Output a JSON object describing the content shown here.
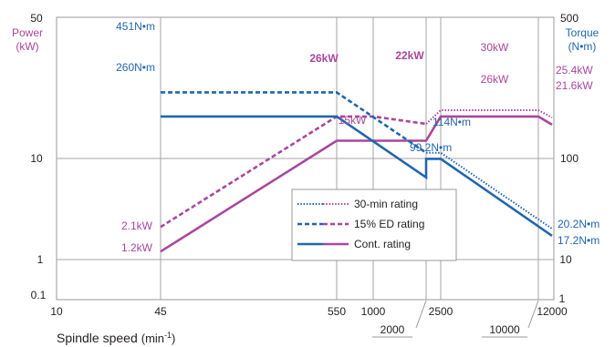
{
  "chart_data": {
    "type": "line",
    "xlabel": "Spindle speed",
    "xlabel_unit": "(min",
    "xlabel_unit_sup": "-1",
    "xlabel_unit_close": ")",
    "y_left": {
      "label_line1": "Power",
      "label_line2": "(kW)",
      "scale": "log",
      "ylim": [
        0.1,
        50
      ],
      "ticks": [
        "0.1",
        "1",
        "10",
        "50"
      ]
    },
    "y_right": {
      "label_line1": "Torque",
      "label_line2": "(N•m)",
      "scale": "log",
      "ylim": [
        1,
        500
      ],
      "ticks": [
        "1",
        "10",
        "100",
        "500"
      ]
    },
    "x_axis": {
      "scale": "piecewise",
      "ticks": [
        "10",
        "45",
        "550",
        "1000",
        "2500",
        "12000"
      ],
      "callouts": [
        "2000",
        "10000"
      ]
    },
    "legend": {
      "placement": "lower-center",
      "entries": [
        "30-min rating",
        "15% ED rating",
        "Cont. rating"
      ]
    },
    "colors": {
      "power": "#a9479b",
      "torque": "#2166ae",
      "grid": "#a6a6a6",
      "text": "#231f20"
    },
    "series": [
      {
        "name": "30-min rating",
        "quantity": "power",
        "unit": "kW",
        "style": "dotted",
        "x": [
          2000,
          2500,
          10000,
          12000
        ],
        "y": [
          22,
          30,
          30,
          25.4
        ]
      },
      {
        "name": "15% ED rating",
        "quantity": "power",
        "unit": "kW",
        "style": "dashed",
        "x": [
          45,
          550,
          1000,
          2000
        ],
        "y": [
          2.1,
          26,
          26,
          22
        ]
      },
      {
        "name": "Cont. rating",
        "quantity": "power",
        "unit": "kW",
        "style": "solid",
        "x": [
          45,
          550,
          2000,
          2500,
          10000,
          12000
        ],
        "y": [
          1.2,
          15,
          15,
          26,
          26,
          21.6
        ]
      },
      {
        "name": "30-min rating",
        "quantity": "torque",
        "unit": "N•m",
        "style": "dotted",
        "x": [
          2000,
          2500,
          12000
        ],
        "y": [
          114,
          114,
          20.2
        ]
      },
      {
        "name": "15% ED rating",
        "quantity": "torque",
        "unit": "N•m",
        "style": "dashed",
        "x": [
          45,
          550,
          2000
        ],
        "y": [
          451,
          451,
          114
        ]
      },
      {
        "name": "Cont. rating",
        "quantity": "torque",
        "unit": "N•m",
        "style": "solid",
        "x": [
          45,
          550,
          2000,
          2000,
          2500,
          12000
        ],
        "y": [
          260,
          260,
          65,
          99.2,
          99.2,
          17.2
        ]
      }
    ],
    "annotations": [
      "451N•m",
      "260N•m",
      "2.1kW",
      "1.2kW",
      "26kW",
      "15kW",
      "22kW",
      "30kW",
      "26kW",
      "25.4kW",
      "21.6kW",
      "114N•m",
      "99.2N•m",
      "20.2N•m",
      "17.2N•m"
    ]
  }
}
